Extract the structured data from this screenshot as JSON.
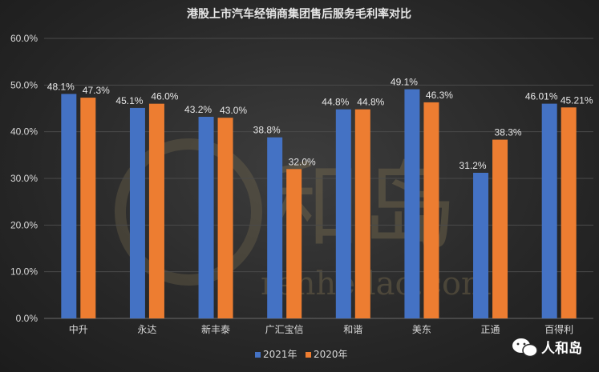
{
  "chart_data": {
    "type": "bar",
    "title": "港股上市汽车经销商集团售后服务毛利率对比",
    "categories": [
      "中升",
      "永达",
      "新丰泰",
      "广汇宝信",
      "和谐",
      "美东",
      "正通",
      "百得利"
    ],
    "series": [
      {
        "name": "2021年",
        "values": [
          48.1,
          45.1,
          43.2,
          38.8,
          44.8,
          49.1,
          31.2,
          46.01
        ],
        "labels": [
          "48.1%",
          "45.1%",
          "43.2%",
          "38.8%",
          "44.8%",
          "49.1%",
          "31.2%",
          "46.01%"
        ],
        "color": "#4472c4"
      },
      {
        "name": "2020年",
        "values": [
          47.3,
          46.0,
          43.0,
          32.0,
          44.8,
          46.3,
          38.3,
          45.21
        ],
        "labels": [
          "47.3%",
          "46.0%",
          "43.0%",
          "32.0%",
          "44.8%",
          "46.3%",
          "38.3%",
          "45.21%"
        ],
        "color": "#ed7d31"
      }
    ],
    "yticks": [
      "0.0%",
      "10.0%",
      "20.0%",
      "30.0%",
      "40.0%",
      "50.0%",
      "60.0%"
    ],
    "ylim": [
      0,
      60
    ],
    "grid": true,
    "legend_position": "bottom"
  },
  "watermark": {
    "text": "renhedao.com",
    "glyphs": "和岛"
  },
  "brand": {
    "name": "人和岛",
    "icon": "wechat-icon"
  }
}
